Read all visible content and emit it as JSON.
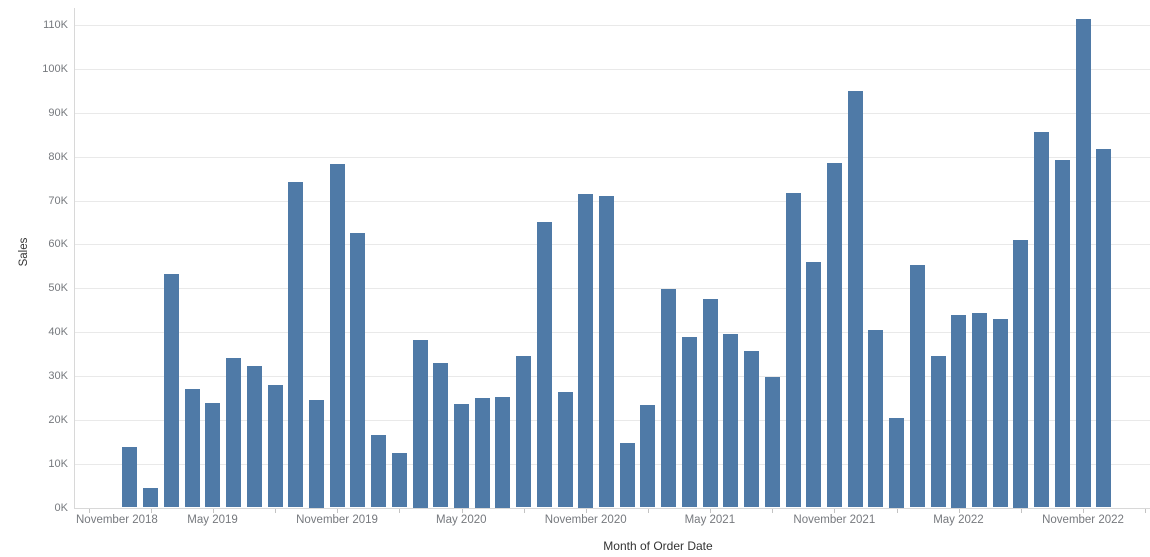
{
  "chart_data": {
    "type": "bar",
    "title": "",
    "xlabel": "Month of Order Date",
    "ylabel": "Sales",
    "bar_color": "#4f7aa7",
    "grid": true,
    "legend": "none",
    "ylim_k": [
      0,
      115
    ],
    "y_tick_labels": [
      "0K",
      "10K",
      "20K",
      "30K",
      "40K",
      "50K",
      "60K",
      "70K",
      "80K",
      "90K",
      "100K",
      "110K"
    ],
    "x_axis_range": [
      "October 2018",
      "February 2023"
    ],
    "x_labeled_ticks": [
      {
        "label": "November 2018",
        "month_index": -2
      },
      {
        "label": "May 2019",
        "month_index": 4
      },
      {
        "label": "November 2019",
        "month_index": 10
      },
      {
        "label": "May 2020",
        "month_index": 16
      },
      {
        "label": "November 2020",
        "month_index": 22
      },
      {
        "label": "May 2021",
        "month_index": 28
      },
      {
        "label": "November 2021",
        "month_index": 34
      },
      {
        "label": "May 2022",
        "month_index": 40
      },
      {
        "label": "November 2022",
        "month_index": 46
      }
    ],
    "minor_tick_every_months": 3,
    "categories": [
      "January 2019",
      "February 2019",
      "March 2019",
      "April 2019",
      "May 2019",
      "June 2019",
      "July 2019",
      "August 2019",
      "September 2019",
      "October 2019",
      "November 2019",
      "December 2019",
      "January 2020",
      "February 2020",
      "March 2020",
      "April 2020",
      "May 2020",
      "June 2020",
      "July 2020",
      "August 2020",
      "September 2020",
      "October 2020",
      "November 2020",
      "December 2020",
      "January 2021",
      "February 2021",
      "March 2021",
      "April 2021",
      "May 2021",
      "June 2021",
      "July 2021",
      "August 2021",
      "September 2021",
      "October 2021",
      "November 2021",
      "December 2021",
      "January 2022",
      "February 2022",
      "March 2022",
      "April 2022",
      "May 2022",
      "June 2022",
      "July 2022",
      "August 2022",
      "September 2022",
      "October 2022",
      "November 2022",
      "December 2022"
    ],
    "values_k": [
      13.7,
      4.5,
      53.3,
      27.0,
      23.8,
      34.0,
      32.3,
      28.0,
      74.2,
      24.5,
      78.4,
      62.6,
      16.6,
      12.5,
      38.2,
      33.0,
      23.6,
      25.0,
      25.2,
      34.5,
      65.0,
      26.3,
      71.6,
      71.0,
      14.8,
      23.3,
      49.8,
      38.9,
      47.5,
      39.6,
      35.6,
      29.7,
      71.8,
      56.0,
      78.5,
      95.0,
      40.5,
      20.4,
      55.2,
      34.6,
      44.0,
      44.3,
      42.9,
      61.1,
      85.7,
      79.2,
      111.4,
      81.7
    ]
  }
}
